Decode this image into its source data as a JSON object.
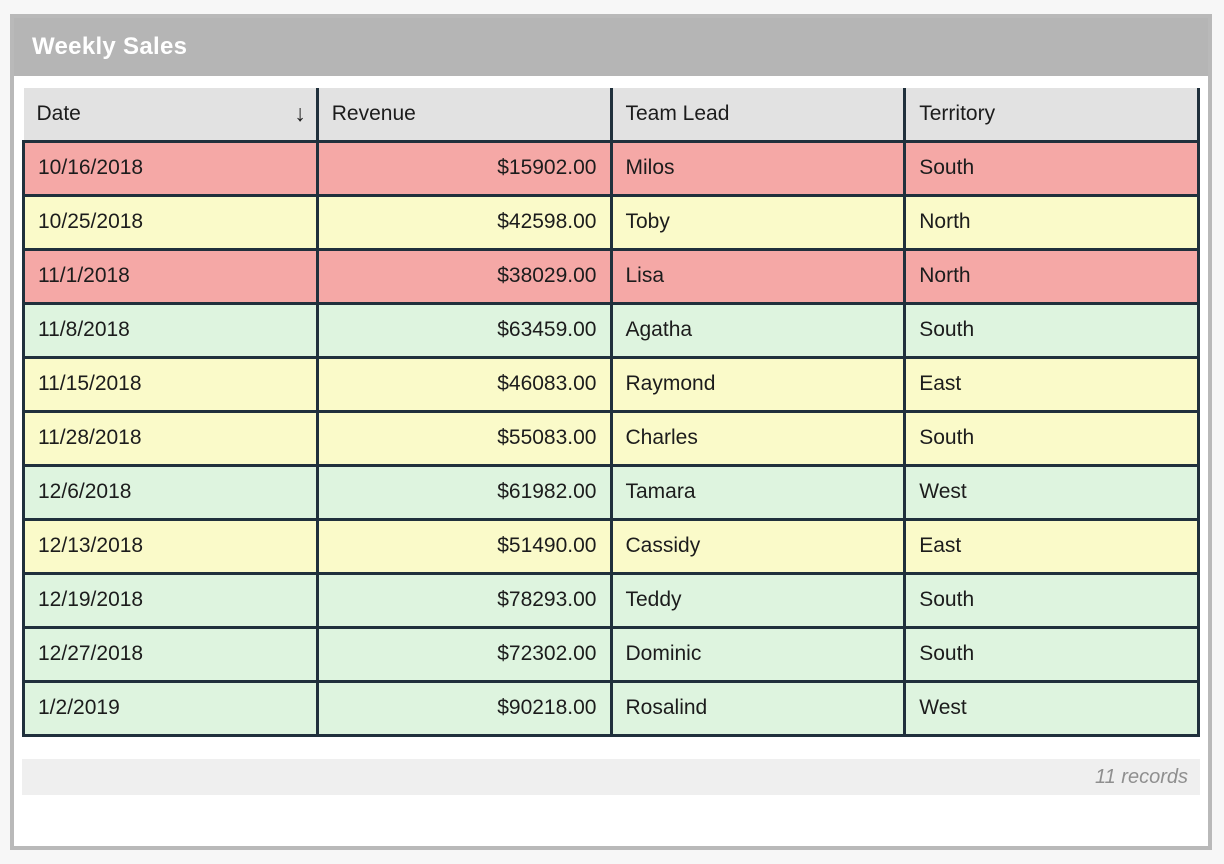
{
  "panel": {
    "title": "Weekly Sales"
  },
  "table": {
    "columns": [
      {
        "label": "Date"
      },
      {
        "label": "Revenue"
      },
      {
        "label": "Team Lead"
      },
      {
        "label": "Territory"
      }
    ],
    "sort": {
      "column": "Date",
      "indicator": "↓"
    },
    "rows": [
      {
        "date": "10/16/2018",
        "revenue": "$15902.00",
        "team_lead": "Milos",
        "territory": "South",
        "status": "red"
      },
      {
        "date": "10/25/2018",
        "revenue": "$42598.00",
        "team_lead": "Toby",
        "territory": "North",
        "status": "yellow"
      },
      {
        "date": "11/1/2018",
        "revenue": "$38029.00",
        "team_lead": "Lisa",
        "territory": "North",
        "status": "red"
      },
      {
        "date": "11/8/2018",
        "revenue": "$63459.00",
        "team_lead": "Agatha",
        "territory": "South",
        "status": "green"
      },
      {
        "date": "11/15/2018",
        "revenue": "$46083.00",
        "team_lead": "Raymond",
        "territory": "East",
        "status": "yellow"
      },
      {
        "date": "11/28/2018",
        "revenue": "$55083.00",
        "team_lead": "Charles",
        "territory": "South",
        "status": "yellow"
      },
      {
        "date": "12/6/2018",
        "revenue": "$61982.00",
        "team_lead": "Tamara",
        "territory": "West",
        "status": "green"
      },
      {
        "date": "12/13/2018",
        "revenue": "$51490.00",
        "team_lead": "Cassidy",
        "territory": "East",
        "status": "yellow"
      },
      {
        "date": "12/19/2018",
        "revenue": "$78293.00",
        "team_lead": "Teddy",
        "territory": "South",
        "status": "green"
      },
      {
        "date": "12/27/2018",
        "revenue": "$72302.00",
        "team_lead": "Dominic",
        "territory": "South",
        "status": "green"
      },
      {
        "date": "1/2/2019",
        "revenue": "$90218.00",
        "team_lead": "Rosalind",
        "territory": "West",
        "status": "green"
      }
    ]
  },
  "footer": {
    "record_count": "11 records"
  },
  "colors": {
    "row_red": "#f5a8a6",
    "row_yellow": "#fafac9",
    "row_green": "#def4df",
    "header_bg": "#e2e2e2",
    "grid_border": "#20303c",
    "title_bar": "#b5b5b5",
    "panel_border": "#b9b9b9",
    "footer_bg": "#efefef",
    "page_bg": "#f7f7f7"
  }
}
